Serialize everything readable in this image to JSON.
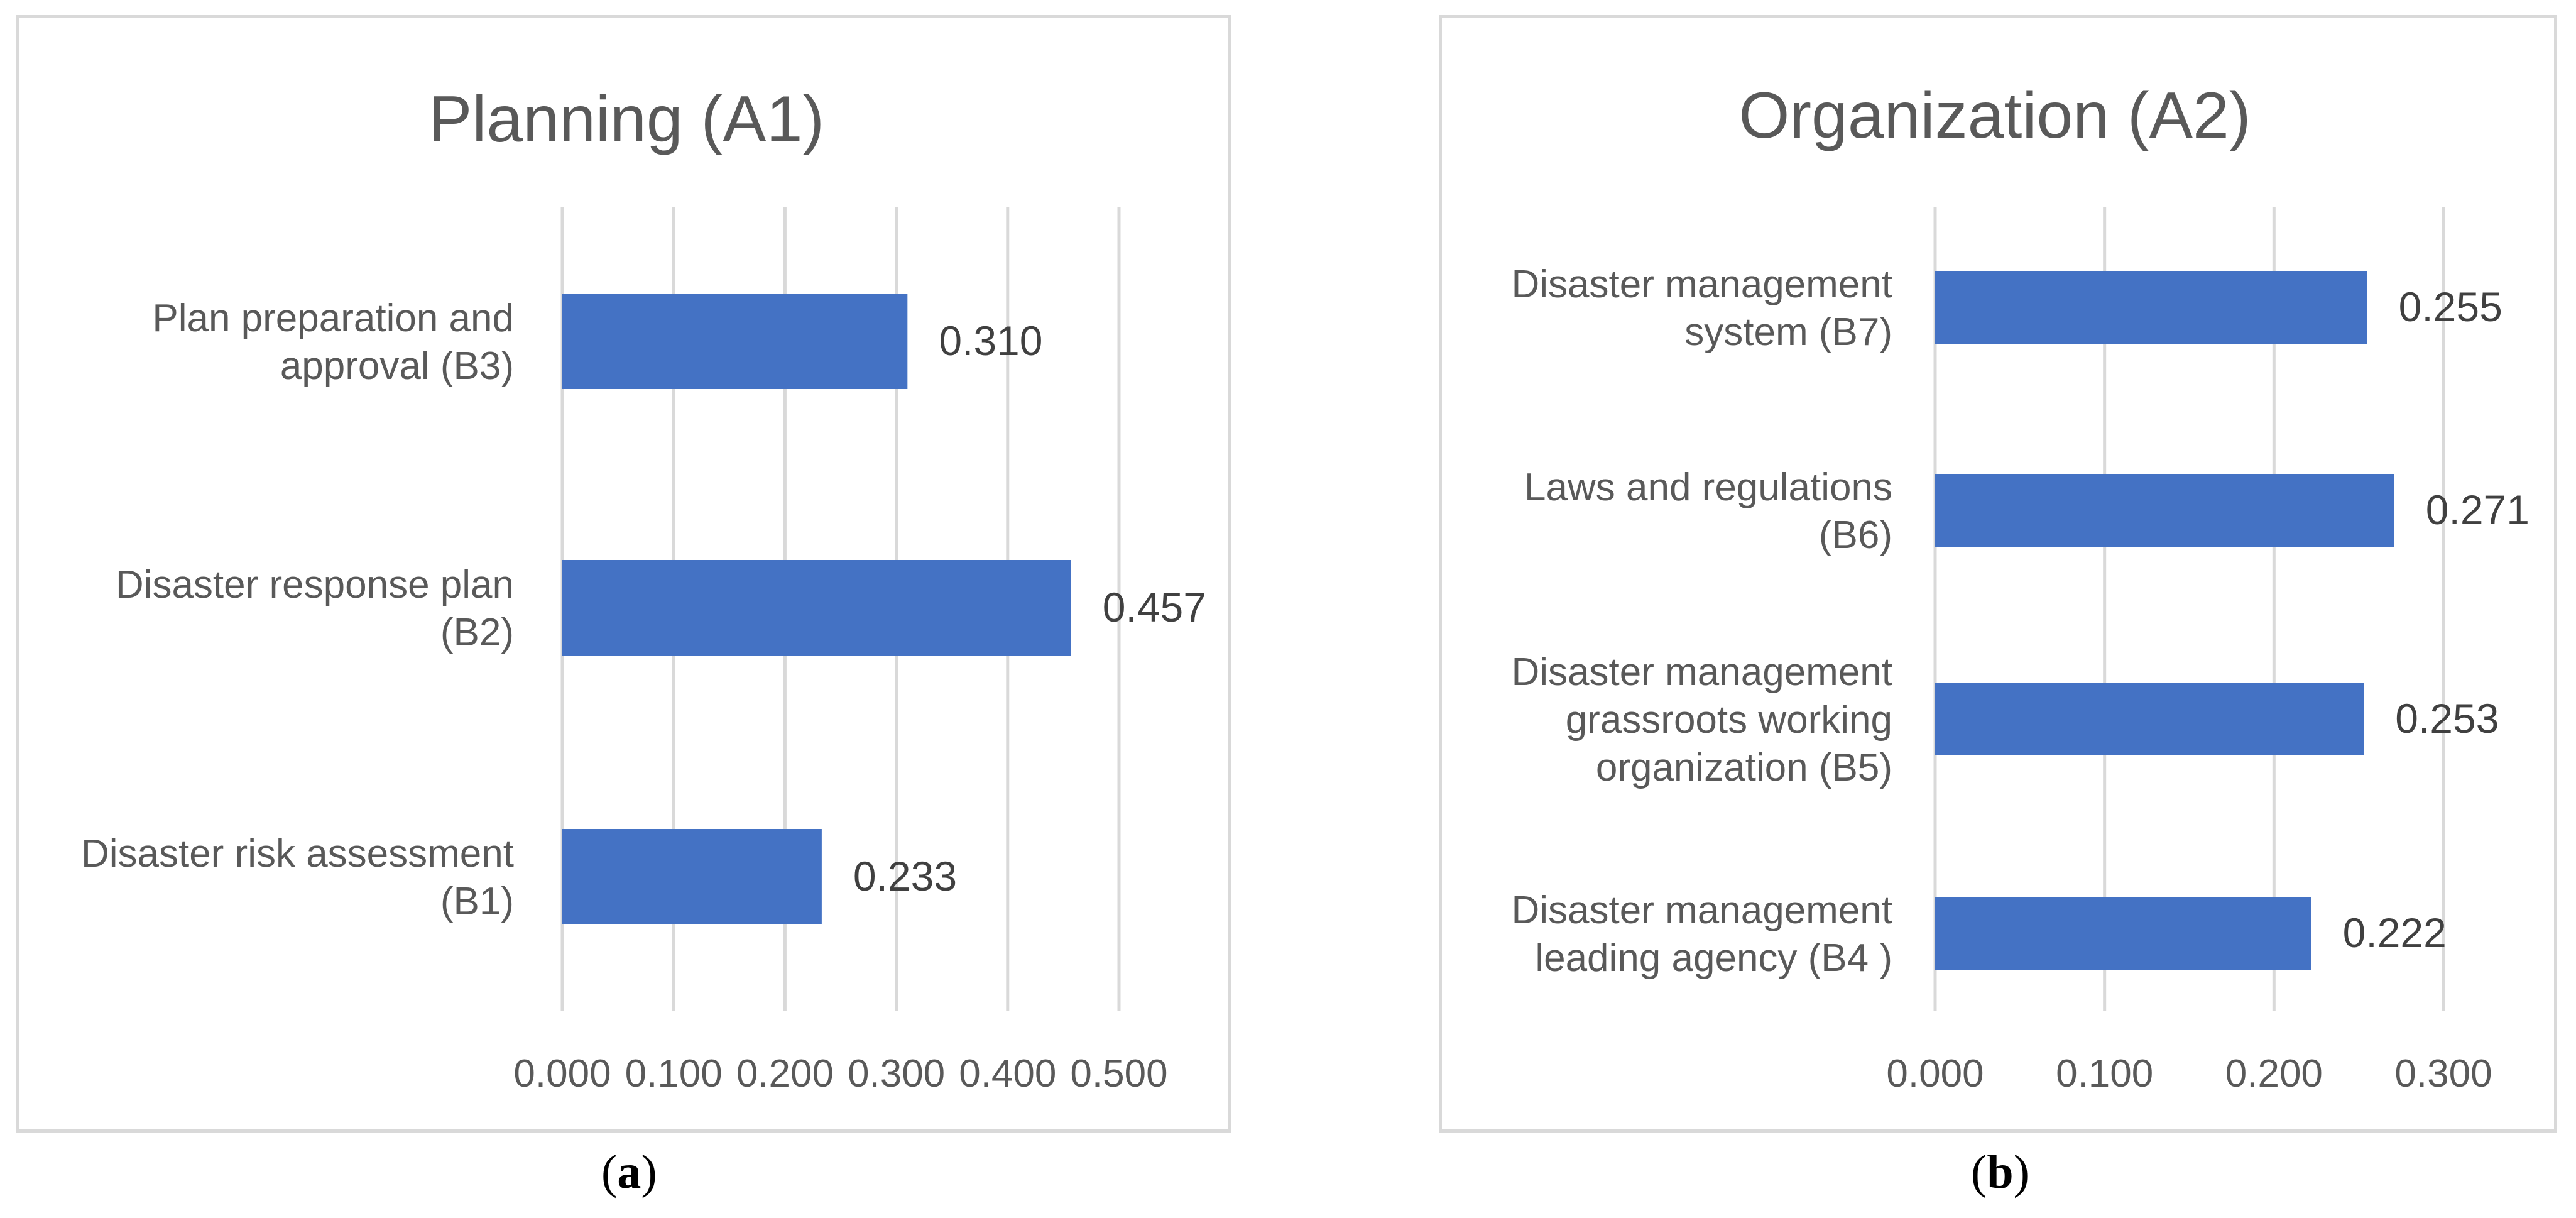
{
  "chart_data": [
    {
      "type": "bar",
      "orientation": "horizontal",
      "title": "Planning (A1)",
      "categories": [
        [
          "Plan preparation and",
          "approval (B3)"
        ],
        [
          "Disaster response plan",
          "(B2)"
        ],
        [
          "Disaster risk assessment",
          "(B1)"
        ]
      ],
      "values": [
        0.31,
        0.457,
        0.233
      ],
      "value_labels": [
        "0.310",
        "0.457",
        "0.233"
      ],
      "xlim": [
        0,
        0.5
      ],
      "ticks": [
        "0.000",
        "0.100",
        "0.200",
        "0.300",
        "0.400",
        "0.500"
      ],
      "xlabel": "",
      "ylabel": "",
      "grid": true,
      "bar_color": "#4472c4"
    },
    {
      "type": "bar",
      "orientation": "horizontal",
      "title": "Organization (A2)",
      "categories": [
        [
          "Disaster management",
          "system (B7)"
        ],
        [
          "Laws and regulations",
          "(B6)"
        ],
        [
          "Disaster management",
          "grassroots working",
          "organization (B5)"
        ],
        [
          "Disaster management",
          "leading agency (B4 )"
        ]
      ],
      "values": [
        0.255,
        0.271,
        0.253,
        0.222
      ],
      "value_labels": [
        "0.255",
        "0.271",
        "0.253",
        "0.222"
      ],
      "xlim": [
        0,
        0.3
      ],
      "ticks": [
        "0.000",
        "0.100",
        "0.200",
        "0.300"
      ],
      "xlabel": "",
      "ylabel": "",
      "grid": true,
      "bar_color": "#4472c4"
    }
  ],
  "captions": {
    "a": "a",
    "b": "b"
  }
}
